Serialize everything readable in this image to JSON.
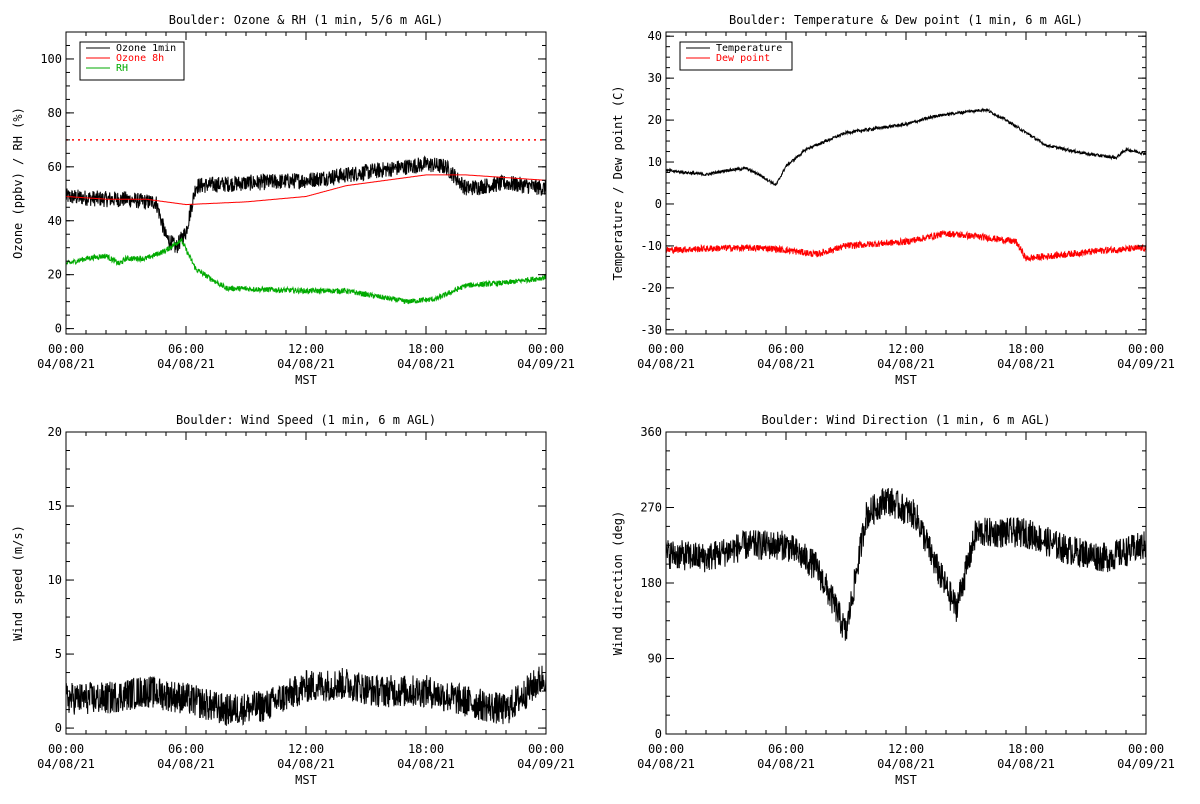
{
  "chart_data": [
    {
      "type": "line",
      "title": "Boulder: Ozone & RH (1 min, 5/6 m AGL)",
      "ylabel": "Ozone (ppbv) / RH (%)",
      "xlabel": "MST",
      "x_ticks": [
        {
          "time": "00:00",
          "date": "04/08/21"
        },
        {
          "time": "06:00",
          "date": "04/08/21"
        },
        {
          "time": "12:00",
          "date": "04/08/21"
        },
        {
          "time": "18:00",
          "date": "04/08/21"
        },
        {
          "time": "00:00",
          "date": "04/09/21"
        }
      ],
      "xlim": [
        "2021-04-08 00:00",
        "2021-04-09 00:00"
      ],
      "ylim": [
        -2,
        110
      ],
      "y_ticks": [
        0,
        20,
        40,
        60,
        80,
        100
      ],
      "legend": {
        "placement": "top-left"
      },
      "reference_lines": [
        {
          "y": 70,
          "color": "#ff0000",
          "style": "dotted"
        }
      ],
      "series": [
        {
          "name": "Ozone 1min",
          "color": "#000000",
          "noise": 3.0,
          "x": [
            "2021-04-08 00:00",
            "2021-04-08 02:00",
            "2021-04-08 03:00",
            "2021-04-08 04:00",
            "2021-04-08 04:30",
            "2021-04-08 05:00",
            "2021-04-08 05:30",
            "2021-04-08 06:00",
            "2021-04-08 06:30",
            "2021-04-08 09:00",
            "2021-04-08 12:00",
            "2021-04-08 14:00",
            "2021-04-08 16:00",
            "2021-04-08 18:00",
            "2021-04-08 19:00",
            "2021-04-08 20:00",
            "2021-04-08 22:00",
            "2021-04-08 23:59"
          ],
          "y": [
            49,
            48,
            48,
            47,
            47,
            34,
            30,
            36,
            53,
            54,
            55,
            57,
            59,
            61,
            60,
            52,
            54,
            52
          ]
        },
        {
          "name": "Ozone 8h",
          "color": "#ff0000",
          "noise": 0,
          "x": [
            "2021-04-08 00:00",
            "2021-04-08 02:00",
            "2021-04-08 04:00",
            "2021-04-08 05:00",
            "2021-04-08 06:00",
            "2021-04-08 09:00",
            "2021-04-08 12:00",
            "2021-04-08 14:00",
            "2021-04-08 16:00",
            "2021-04-08 18:00",
            "2021-04-08 20:00",
            "2021-04-08 22:00",
            "2021-04-08 23:59"
          ],
          "y": [
            49,
            48,
            48,
            47,
            46,
            47,
            49,
            53,
            55,
            57,
            57,
            56,
            55
          ]
        },
        {
          "name": "RH",
          "color": "#00aa00",
          "noise": 1.0,
          "x": [
            "2021-04-08 00:00",
            "2021-04-08 01:00",
            "2021-04-08 02:00",
            "2021-04-08 02:40",
            "2021-04-08 03:00",
            "2021-04-08 04:00",
            "2021-04-08 05:00",
            "2021-04-08 05:45",
            "2021-04-08 06:30",
            "2021-04-08 08:00",
            "2021-04-08 12:00",
            "2021-04-08 14:00",
            "2021-04-08 15:30",
            "2021-04-08 17:00",
            "2021-04-08 18:30",
            "2021-04-08 20:00",
            "2021-04-08 22:00",
            "2021-04-08 23:59"
          ],
          "y": [
            24,
            26,
            27,
            24,
            26,
            26,
            29,
            33,
            22,
            15,
            14,
            14,
            12,
            10,
            11,
            16,
            17,
            19
          ]
        }
      ]
    },
    {
      "type": "line",
      "title": "Boulder: Temperature & Dew point (1 min, 6 m AGL)",
      "ylabel": "Temperature / Dew point (C)",
      "xlabel": "MST",
      "x_ticks": [
        {
          "time": "00:00",
          "date": "04/08/21"
        },
        {
          "time": "06:00",
          "date": "04/08/21"
        },
        {
          "time": "12:00",
          "date": "04/08/21"
        },
        {
          "time": "18:00",
          "date": "04/08/21"
        },
        {
          "time": "00:00",
          "date": "04/09/21"
        }
      ],
      "xlim": [
        "2021-04-08 00:00",
        "2021-04-09 00:00"
      ],
      "ylim": [
        -31,
        41
      ],
      "y_ticks": [
        -30,
        -20,
        -10,
        0,
        10,
        20,
        30,
        40
      ],
      "legend": {
        "placement": "top-left"
      },
      "series": [
        {
          "name": "Temperature",
          "color": "#000000",
          "noise": 0.35,
          "x": [
            "2021-04-08 00:00",
            "2021-04-08 01:00",
            "2021-04-08 02:00",
            "2021-04-08 03:00",
            "2021-04-08 04:00",
            "2021-04-08 04:40",
            "2021-04-08 05:30",
            "2021-04-08 06:00",
            "2021-04-08 07:00",
            "2021-04-08 09:00",
            "2021-04-08 12:00",
            "2021-04-08 13:30",
            "2021-04-08 15:00",
            "2021-04-08 16:00",
            "2021-04-08 17:00",
            "2021-04-08 18:00",
            "2021-04-08 19:00",
            "2021-04-08 21:00",
            "2021-04-08 22:30",
            "2021-04-08 23:00",
            "2021-04-08 23:59"
          ],
          "y": [
            8,
            7.5,
            7,
            8,
            8.5,
            7,
            4.5,
            9,
            13,
            17,
            19,
            21,
            22,
            22.5,
            20,
            17,
            14,
            12,
            11,
            13,
            12
          ]
        },
        {
          "name": "Dew point",
          "color": "#ff0000",
          "noise": 0.8,
          "x": [
            "2021-04-08 00:00",
            "2021-04-08 03:00",
            "2021-04-08 05:00",
            "2021-04-08 06:00",
            "2021-04-08 07:30",
            "2021-04-08 09:00",
            "2021-04-08 12:00",
            "2021-04-08 14:00",
            "2021-04-08 16:00",
            "2021-04-08 17:30",
            "2021-04-08 18:00",
            "2021-04-08 20:00",
            "2021-04-08 22:00",
            "2021-04-08 23:59"
          ],
          "y": [
            -11,
            -10.5,
            -10.5,
            -11,
            -12,
            -10,
            -9,
            -7,
            -8,
            -9,
            -13,
            -12,
            -11,
            -10.5
          ]
        }
      ]
    },
    {
      "type": "line",
      "title": "Boulder: Wind Speed (1 min, 6 m AGL)",
      "ylabel": "Wind speed (m/s)",
      "xlabel": "MST",
      "x_ticks": [
        {
          "time": "00:00",
          "date": "04/08/21"
        },
        {
          "time": "06:00",
          "date": "04/08/21"
        },
        {
          "time": "12:00",
          "date": "04/08/21"
        },
        {
          "time": "18:00",
          "date": "04/08/21"
        },
        {
          "time": "00:00",
          "date": "04/09/21"
        }
      ],
      "xlim": [
        "2021-04-08 00:00",
        "2021-04-09 00:00"
      ],
      "ylim": [
        -0.4,
        20
      ],
      "y_ticks": [
        0,
        5,
        10,
        15,
        20
      ],
      "series": [
        {
          "name": "",
          "color": "#000000",
          "noise": 1.1,
          "x": [
            "2021-04-08 00:00",
            "2021-04-08 02:00",
            "2021-04-08 04:00",
            "2021-04-08 06:00",
            "2021-04-08 08:00",
            "2021-04-08 10:00",
            "2021-04-08 12:00",
            "2021-04-08 14:00",
            "2021-04-08 15:30",
            "2021-04-08 18:00",
            "2021-04-08 20:00",
            "2021-04-08 22:00",
            "2021-04-08 23:30",
            "2021-04-08 23:59"
          ],
          "y": [
            2,
            2,
            2.5,
            2,
            1.2,
            1.5,
            2.8,
            3,
            2.5,
            2.5,
            1.8,
            1.2,
            3,
            3.5
          ]
        }
      ]
    },
    {
      "type": "line",
      "title": "Boulder: Wind Direction (1 min, 6 m AGL)",
      "ylabel": "Wind direction (deg)",
      "xlabel": "MST",
      "x_ticks": [
        {
          "time": "00:00",
          "date": "04/08/21"
        },
        {
          "time": "06:00",
          "date": "04/08/21"
        },
        {
          "time": "12:00",
          "date": "04/08/21"
        },
        {
          "time": "18:00",
          "date": "04/08/21"
        },
        {
          "time": "00:00",
          "date": "04/09/21"
        }
      ],
      "xlim": [
        "2021-04-08 00:00",
        "2021-04-09 00:00"
      ],
      "ylim": [
        0,
        360
      ],
      "y_ticks": [
        0,
        90,
        180,
        270,
        360
      ],
      "series": [
        {
          "name": "",
          "color": "#000000",
          "noise": 18,
          "x": [
            "2021-04-08 00:00",
            "2021-04-08 02:00",
            "2021-04-08 04:00",
            "2021-04-08 06:00",
            "2021-04-08 07:30",
            "2021-04-08 08:30",
            "2021-04-08 09:00",
            "2021-04-08 10:00",
            "2021-04-08 11:00",
            "2021-04-08 12:30",
            "2021-04-08 13:30",
            "2021-04-08 14:30",
            "2021-04-08 15:30",
            "2021-04-08 18:00",
            "2021-04-08 20:00",
            "2021-04-08 22:00",
            "2021-04-08 23:59"
          ],
          "y": [
            215,
            210,
            225,
            225,
            200,
            150,
            120,
            260,
            280,
            260,
            200,
            150,
            240,
            240,
            220,
            210,
            225
          ]
        }
      ]
    }
  ]
}
